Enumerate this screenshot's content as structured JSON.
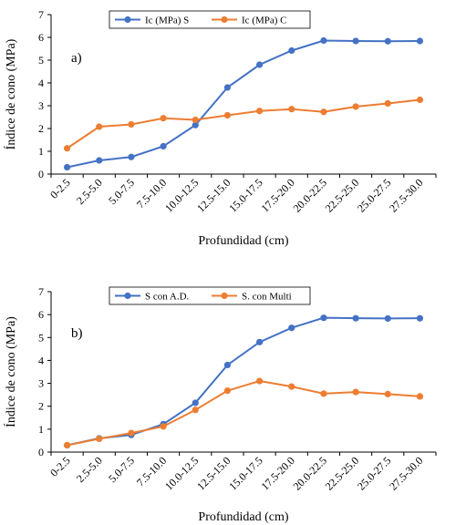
{
  "chart_data": [
    {
      "type": "line",
      "panel_label": "a)",
      "xlabel": "Profundidad (cm)",
      "ylabel": "Índice de cono (MPa)",
      "ylim": [
        0,
        7
      ],
      "yticks": [
        0,
        1,
        2,
        3,
        4,
        5,
        6,
        7
      ],
      "grid": false,
      "legend_position": "top-center",
      "categories": [
        "0-2.5",
        "2.5-5.0",
        "5.0-7.5",
        "7.5-10.0",
        "10.0-12.5",
        "12.5-15.0",
        "15.0-17.5",
        "17.5-20.0",
        "20.0-22.5",
        "22.5-25.0",
        "25.0-27.5",
        "27.5-30.0"
      ],
      "series": [
        {
          "name": "Ic (MPa) S",
          "color": "#4472C4",
          "values": [
            0.3,
            0.6,
            0.75,
            1.22,
            2.15,
            3.8,
            4.8,
            5.42,
            5.86,
            5.84,
            5.83,
            5.84
          ]
        },
        {
          "name": "Ic (MPa) C",
          "color": "#ED7D31",
          "values": [
            1.13,
            2.08,
            2.18,
            2.45,
            2.38,
            2.58,
            2.77,
            2.85,
            2.73,
            2.96,
            3.1,
            3.26
          ]
        }
      ]
    },
    {
      "type": "line",
      "panel_label": "b)",
      "xlabel": "Profundidad (cm)",
      "ylabel": "Índice de cono (MPa)",
      "ylim": [
        0,
        7
      ],
      "yticks": [
        0,
        1,
        2,
        3,
        4,
        5,
        6,
        7
      ],
      "grid": false,
      "legend_position": "top-center",
      "categories": [
        "0-2.5",
        "2.5-5.0",
        "5.0-7.5",
        "7.5-10.0",
        "10.0-12.5",
        "12.5-15.0",
        "15.0-17.5",
        "17.5-20.0",
        "20.0-22.5",
        "22.5-25.0",
        "25.0-27.5",
        "27.5-30.0"
      ],
      "series": [
        {
          "name": "S con A.D.",
          "color": "#4472C4",
          "values": [
            0.3,
            0.6,
            0.75,
            1.22,
            2.15,
            3.8,
            4.8,
            5.42,
            5.86,
            5.84,
            5.83,
            5.84
          ]
        },
        {
          "name": "S. con Multi",
          "color": "#ED7D31",
          "values": [
            0.3,
            0.58,
            0.83,
            1.12,
            1.84,
            2.68,
            3.1,
            2.86,
            2.55,
            2.62,
            2.53,
            2.43
          ]
        }
      ]
    }
  ]
}
